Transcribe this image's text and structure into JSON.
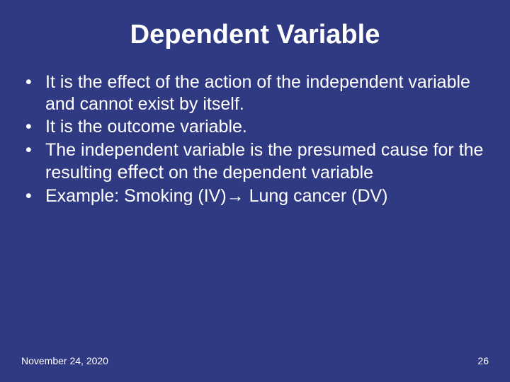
{
  "slide": {
    "title": "Dependent Variable",
    "bullets": [
      "It is the effect of the action of the independent variable and cannot exist by itself.",
      "It is the outcome variable.",
      "The independent variable is the presumed cause for the resulting effect on the dependent variable",
      "Example: Smoking (IV)→ Lung cancer (DV)"
    ],
    "bullet3_parts": {
      "pre": "The independent variable is the presumed cause for the resulting ",
      "effect": "effect",
      "post": " on the dependent variable"
    },
    "bullet4_parts": {
      "pre": "Example: Smoking (IV)",
      "arrow": "→",
      "post": " Lung cancer (DV)"
    },
    "footer_date": "November 24, 2020",
    "footer_page": "26"
  },
  "style": {
    "background_color": "#2f3a82",
    "text_color": "#ffffff",
    "title_fontsize": 38,
    "body_fontsize": 25,
    "footer_fontsize": 14
  }
}
